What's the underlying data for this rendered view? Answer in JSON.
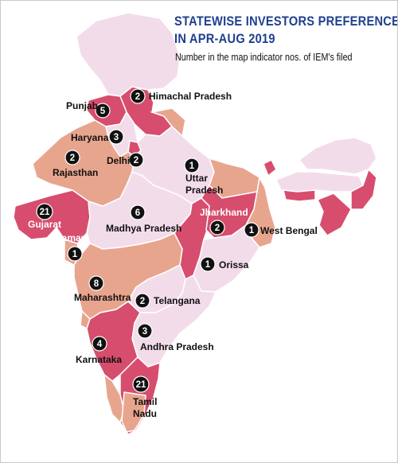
{
  "title_line1": "STATEWISE INVESTORS PREFERENCE",
  "title_line2": "IN APR-AUG 2019",
  "subtitle": "Number in the map indicator nos. of IEM's filed",
  "colors": {
    "light": "#f3dcea",
    "medium": "#e8a58d",
    "dark": "#d74d6d",
    "badge": "#111111",
    "title": "#1f3f8f"
  },
  "states": [
    {
      "name": "Himachal Pradesh",
      "count": 2
    },
    {
      "name": "Punjab",
      "count": 5
    },
    {
      "name": "Haryana",
      "count": 3
    },
    {
      "name": "Delhi",
      "count": 2
    },
    {
      "name": "Rajasthan",
      "count": 2
    },
    {
      "name": "Uttar Pradesh",
      "count": 1
    },
    {
      "name": "Gujarat",
      "count": 21
    },
    {
      "name": "Daman",
      "count": 1
    },
    {
      "name": "Madhya Pradesh",
      "count": 6
    },
    {
      "name": "Jharkhand",
      "count": 2
    },
    {
      "name": "West Bengal",
      "count": 1
    },
    {
      "name": "Orissa",
      "count": 1
    },
    {
      "name": "Maharashtra",
      "count": 8
    },
    {
      "name": "Telangana",
      "count": 2
    },
    {
      "name": "Andhra Pradesh",
      "count": 3
    },
    {
      "name": "Karnataka",
      "count": 4
    },
    {
      "name": "Tamil Nadu",
      "count": 21
    }
  ]
}
